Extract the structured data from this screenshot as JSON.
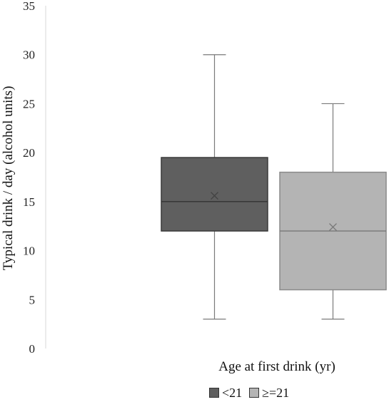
{
  "chart_data": {
    "type": "boxplot",
    "ylabel": "Typical drink / day (alcohol units)",
    "xlabel": "Age at first drink (yr)",
    "ylim": [
      0,
      35
    ],
    "yticks": [
      0,
      5,
      10,
      15,
      20,
      25,
      30,
      35
    ],
    "grid": false,
    "legend_position": "bottom",
    "series": [
      {
        "name": "<21",
        "color": "#5f5f5f",
        "whisker_low": 3,
        "q1": 12,
        "median": 15,
        "q3": 19.5,
        "whisker_high": 30,
        "mean": 15.6
      },
      {
        "name": "≥=21",
        "color": "#b4b4b4",
        "whisker_low": 3,
        "q1": 6,
        "median": 12,
        "q3": 18,
        "whisker_high": 25,
        "mean": 12.4
      }
    ]
  }
}
